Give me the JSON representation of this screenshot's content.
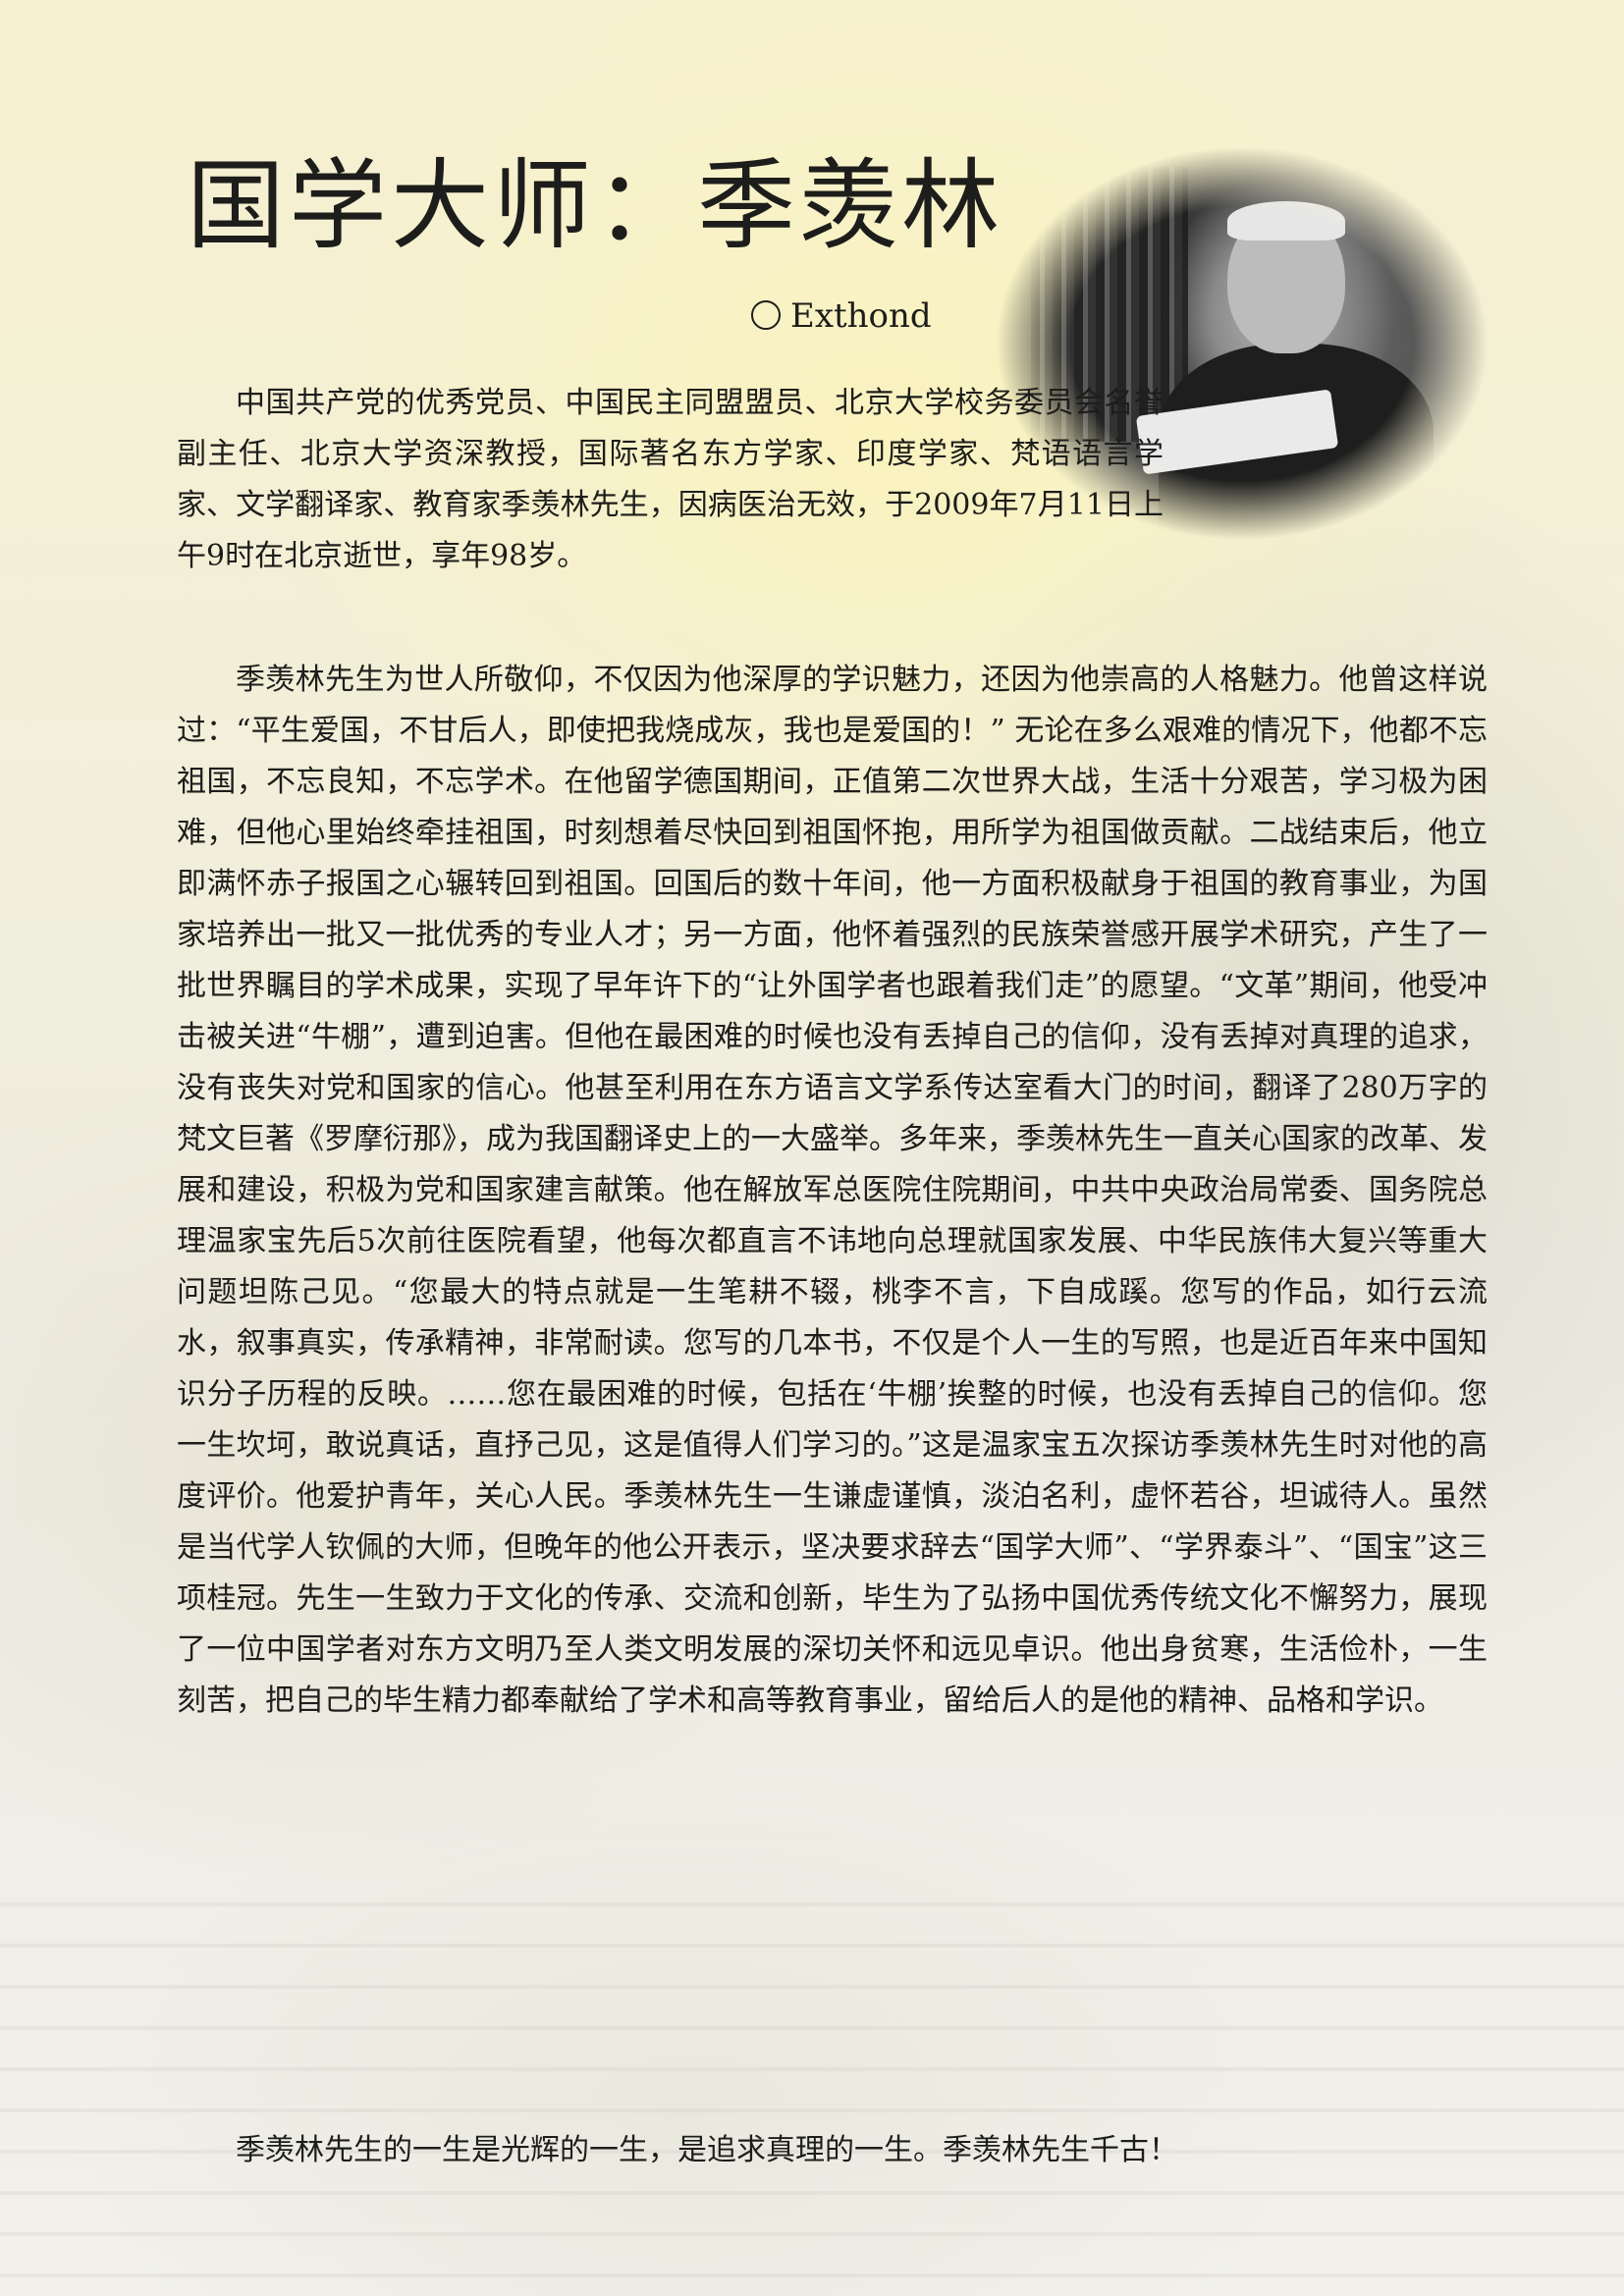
{
  "article": {
    "title": "国学大师：季羡林",
    "author": "Exthond",
    "paragraphs": [
      "中国共产党的优秀党员、中国民主同盟盟员、北京大学校务委员会名誉副主任、北京大学资深教授，国际著名东方学家、印度学家、梵语语言学家、文学翻译家、教育家季羡林先生，因病医治无效，于2009年7月11日上午9时在北京逝世，享年98岁。",
      "季羡林先生为世人所敬仰，不仅因为他深厚的学识魅力，还因为他崇高的人格魅力。他曾这样说过：“平生爱国，不甘后人，即使把我烧成灰，我也是爱国的！” 无论在多么艰难的情况下，他都不忘祖国，不忘良知，不忘学术。在他留学德国期间，正值第二次世界大战，生活十分艰苦，学习极为困难，但他心里始终牵挂祖国，时刻想着尽快回到祖国怀抱，用所学为祖国做贡献。二战结束后，他立即满怀赤子报国之心辗转回到祖国。回国后的数十年间，他一方面积极献身于祖国的教育事业，为国家培养出一批又一批优秀的专业人才；另一方面，他怀着强烈的民族荣誉感开展学术研究，产生了一批世界瞩目的学术成果，实现了早年许下的“让外国学者也跟着我们走”的愿望。“文革”期间，他受冲击被关进“牛棚”，遭到迫害。但他在最困难的时候也没有丢掉自己的信仰，没有丢掉对真理的追求，没有丧失对党和国家的信心。他甚至利用在东方语言文学系传达室看大门的时间，翻译了280万字的梵文巨著《罗摩衍那》，成为我国翻译史上的一大盛举。多年来，季羡林先生一直关心国家的改革、发展和建设，积极为党和国家建言献策。他在解放军总医院住院期间，中共中央政治局常委、国务院总理温家宝先后5次前往医院看望，他每次都直言不讳地向总理就国家发展、中华民族伟大复兴等重大问题坦陈己见。“您最大的特点就是一生笔耕不辍，桃李不言，下自成蹊。您写的作品，如行云流水，叙事真实，传承精神，非常耐读。您写的几本书，不仅是个人一生的写照，也是近百年来中国知识分子历程的反映。……您在最困难的时候，包括在‘牛棚’挨整的时候，也没有丢掉自己的信仰。您一生坎坷，敢说真话，直抒己见，这是值得人们学习的。”这是温家宝五次探访季羡林先生时对他的高度评价。他爱护青年，关心人民。季羡林先生一生谦虚谨慎，淡泊名利，虚怀若谷，坦诚待人。虽然是当代学人钦佩的大师，但晚年的他公开表示，坚决要求辞去“国学大师”、“学界泰斗”、“国宝”这三项桂冠。先生一生致力于文化的传承、交流和创新，毕生为了弘扬中国优秀传统文化不懈努力，展现了一位中国学者对东方文明乃至人类文明发展的深切关怀和远见卓识。他出身贫寒，生活俭朴，一生刻苦，把自己的毕生精力都奉献给了学术和高等教育事业，留给后人的是他的精神、品格和学识。",
      "季羡林先生的一生是光辉的一生，是追求真理的一生。季羡林先生千古！"
    ]
  }
}
